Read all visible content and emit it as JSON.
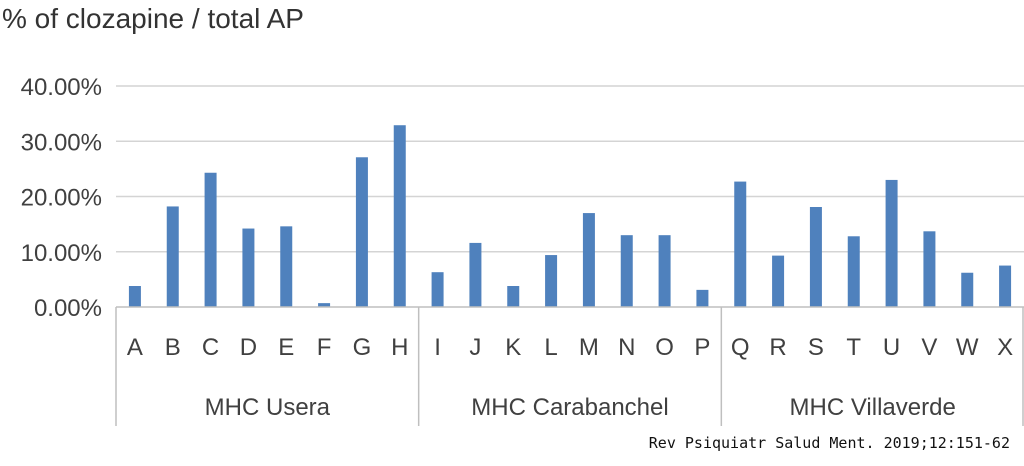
{
  "chart_data": {
    "type": "bar",
    "title": "% of clozapine / total AP",
    "y_tick_labels": [
      "0.00%",
      "10.00%",
      "20.00%",
      "30.00%",
      "40.00%"
    ],
    "ylim": [
      0,
      40
    ],
    "grid": true,
    "bar_color": "#4f81bd",
    "groups": [
      {
        "name": "MHC Usera",
        "categories": [
          "A",
          "B",
          "C",
          "D",
          "E",
          "F",
          "G",
          "H"
        ],
        "values": [
          3.8,
          18.2,
          24.3,
          14.2,
          14.6,
          0.7,
          27.1,
          32.9
        ]
      },
      {
        "name": "MHC Carabanchel",
        "categories": [
          "I",
          "J",
          "K",
          "L",
          "M",
          "N",
          "O",
          "P"
        ],
        "values": [
          6.3,
          11.6,
          3.8,
          9.4,
          17.0,
          13.0,
          13.0,
          3.1
        ]
      },
      {
        "name": "MHC Villaverde",
        "categories": [
          "Q",
          "R",
          "S",
          "T",
          "U",
          "V",
          "W",
          "X"
        ],
        "values": [
          22.7,
          9.3,
          18.1,
          12.8,
          23.0,
          13.7,
          6.2,
          7.5
        ]
      }
    ]
  },
  "citation": "Rev Psiquiatr Salud Ment. 2019;12:151-62"
}
